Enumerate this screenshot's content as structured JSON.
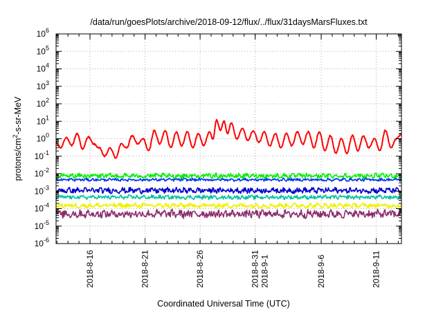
{
  "chart_data": {
    "type": "line",
    "title": "/data/run/goesPlots/archive/2018-09-12/flux/../flux/31daysMarsFluxes.txt",
    "xlabel": "Coordinated Universal Time (UTC)",
    "ylabel": {
      "base": "protons/cm",
      "sup": "2",
      "rest": "-s-sr-MeV"
    },
    "yscale": "log",
    "ylim_exp": [
      -6,
      6
    ],
    "ytick_base": "10",
    "ytick_exponents": [
      "-6",
      "-5",
      "-4",
      "-3",
      "-2",
      "-1",
      "0",
      "1",
      "2",
      "3",
      "4",
      "5",
      "6"
    ],
    "xlim": [
      "2018-08-12T22:00",
      "2018-09-13T07:00"
    ],
    "xticks": [
      {
        "date": "2018-08-16T00:00",
        "lines": [
          "2018-8-16"
        ]
      },
      {
        "date": "2018-08-21T00:00",
        "lines": [
          "2018-8-21"
        ]
      },
      {
        "date": "2018-08-26T00:00",
        "lines": [
          "2018-8-26"
        ]
      },
      {
        "date": "2018-08-31T00:00",
        "lines": [
          "2018-8-31",
          "2018-9-1"
        ]
      },
      {
        "date": "2018-09-06T00:00",
        "lines": [
          "2018-9-6"
        ]
      },
      {
        "date": "2018-09-11T00:00",
        "lines": [
          "2018-9-11"
        ]
      }
    ],
    "grid": true,
    "legend": "none",
    "series": [
      {
        "color": "#ff0000",
        "points": [
          [
            "2018-08-12T22:00",
            0.6
          ],
          [
            "2018-08-13T08:00",
            0.3
          ],
          [
            "2018-08-13T20:00",
            1.2
          ],
          [
            "2018-08-14T08:00",
            0.4
          ],
          [
            "2018-08-14T20:00",
            2.0
          ],
          [
            "2018-08-15T08:00",
            0.25
          ],
          [
            "2018-08-15T20:00",
            1.3
          ],
          [
            "2018-08-16T08:00",
            0.5
          ],
          [
            "2018-08-16T20:00",
            0.3
          ],
          [
            "2018-08-17T08:00",
            0.1
          ],
          [
            "2018-08-17T20:00",
            0.3
          ],
          [
            "2018-08-18T08:00",
            0.08
          ],
          [
            "2018-08-18T20:00",
            0.5
          ],
          [
            "2018-08-19T08:00",
            0.3
          ],
          [
            "2018-08-19T20:00",
            1.5
          ],
          [
            "2018-08-20T08:00",
            0.5
          ],
          [
            "2018-08-20T20:00",
            1.0
          ],
          [
            "2018-08-21T08:00",
            0.2
          ],
          [
            "2018-08-21T20:00",
            3.0
          ],
          [
            "2018-08-22T08:00",
            0.5
          ],
          [
            "2018-08-22T20:00",
            3.0
          ],
          [
            "2018-08-23T08:00",
            0.3
          ],
          [
            "2018-08-23T20:00",
            2.5
          ],
          [
            "2018-08-24T08:00",
            0.4
          ],
          [
            "2018-08-24T20:00",
            2.5
          ],
          [
            "2018-08-25T08:00",
            0.3
          ],
          [
            "2018-08-25T20:00",
            2.0
          ],
          [
            "2018-08-26T08:00",
            0.4
          ],
          [
            "2018-08-26T20:00",
            2.5
          ],
          [
            "2018-08-27T04:00",
            1.0
          ],
          [
            "2018-08-27T12:00",
            12
          ],
          [
            "2018-08-27T20:00",
            3.0
          ],
          [
            "2018-08-28T04:00",
            10
          ],
          [
            "2018-08-28T12:00",
            2.0
          ],
          [
            "2018-08-28T20:00",
            8.0
          ],
          [
            "2018-08-29T08:00",
            1.0
          ],
          [
            "2018-08-29T20:00",
            4.0
          ],
          [
            "2018-08-30T08:00",
            0.8
          ],
          [
            "2018-08-30T20:00",
            3.0
          ],
          [
            "2018-08-31T08:00",
            0.6
          ],
          [
            "2018-08-31T20:00",
            2.5
          ],
          [
            "2018-09-01T08:00",
            0.4
          ],
          [
            "2018-09-01T20:00",
            2.0
          ],
          [
            "2018-09-02T08:00",
            0.3
          ],
          [
            "2018-09-02T20:00",
            2.0
          ],
          [
            "2018-09-03T08:00",
            0.4
          ],
          [
            "2018-09-03T20:00",
            2.5
          ],
          [
            "2018-09-04T08:00",
            0.5
          ],
          [
            "2018-09-04T20:00",
            2.5
          ],
          [
            "2018-09-05T08:00",
            0.3
          ],
          [
            "2018-09-05T20:00",
            2.5
          ],
          [
            "2018-09-06T08:00",
            0.2
          ],
          [
            "2018-09-06T20:00",
            1.5
          ],
          [
            "2018-09-07T08:00",
            0.15
          ],
          [
            "2018-09-07T20:00",
            1.0
          ],
          [
            "2018-09-08T08:00",
            0.15
          ],
          [
            "2018-09-08T20:00",
            1.5
          ],
          [
            "2018-09-09T08:00",
            0.2
          ],
          [
            "2018-09-09T20:00",
            1.5
          ],
          [
            "2018-09-10T08:00",
            0.3
          ],
          [
            "2018-09-10T20:00",
            1.0
          ],
          [
            "2018-09-11T08:00",
            0.2
          ],
          [
            "2018-09-11T20:00",
            3.0
          ],
          [
            "2018-09-12T08:00",
            0.3
          ],
          [
            "2018-09-12T20:00",
            1.0
          ],
          [
            "2018-09-13T07:00",
            1.8
          ]
        ]
      },
      {
        "color": "#00ee00",
        "level": 0.0075,
        "spread": 0.12
      },
      {
        "color": "#0033ee",
        "level": 0.0045,
        "spread": 0.07
      },
      {
        "color": "#0000cc",
        "level": 0.0011,
        "spread": 0.14
      },
      {
        "color": "#00c0a0",
        "level": 0.00045,
        "spread": 0.1
      },
      {
        "color": "#f0f000",
        "level": 0.00015,
        "spread": 0.12
      },
      {
        "color": "#8c2d6c",
        "level": 5e-05,
        "spread": 0.2
      }
    ]
  }
}
